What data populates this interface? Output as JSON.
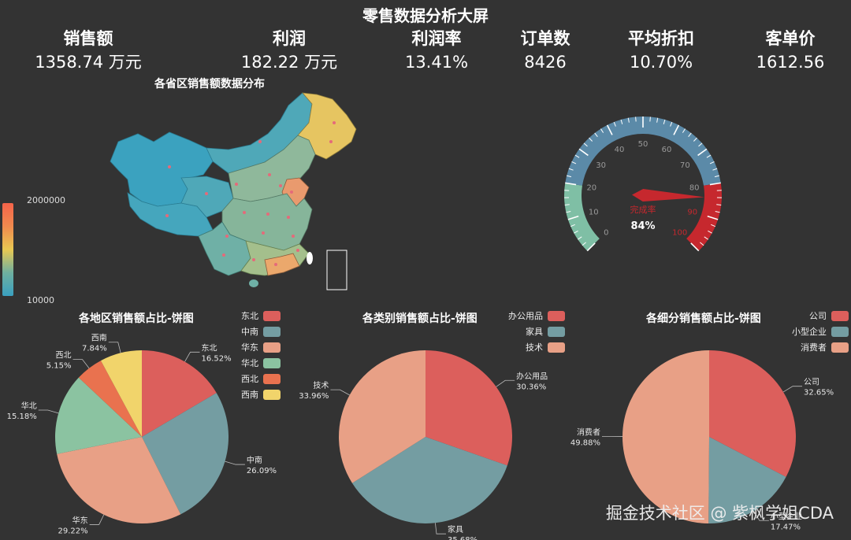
{
  "page": {
    "title": "零售数据分析大屏",
    "watermark": "掘金技术社区 @ 紫枫学姐CDA"
  },
  "kpis": [
    {
      "label": "销售额",
      "value": "1358.74 万元"
    },
    {
      "label": "利润",
      "value": "182.22 万元"
    },
    {
      "label": "利润率",
      "value": "13.41%"
    },
    {
      "label": "订单数",
      "value": "8426"
    },
    {
      "label": "平均折扣",
      "value": "10.70%"
    },
    {
      "label": "客单价",
      "value": "1612.56"
    }
  ],
  "map": {
    "title": "各省区销售额数据分布",
    "visual_map": {
      "max_label": "2000000",
      "min_label": "10000",
      "max": 2000000,
      "min": 10000,
      "colors": [
        "#f5634a",
        "#e8c852",
        "#6fb0a0",
        "#3aa0c0"
      ]
    }
  },
  "gauge": {
    "name": "完成率",
    "value": 84,
    "value_label": "84%",
    "min": 0,
    "max": 100,
    "ticks": [
      "0",
      "10",
      "20",
      "30",
      "40",
      "50",
      "60",
      "70",
      "80",
      "90",
      "100"
    ],
    "bands": [
      {
        "to": 0.2,
        "color": "#7fbfa5"
      },
      {
        "to": 0.8,
        "color": "#5b8aa8"
      },
      {
        "to": 1.0,
        "color": "#c6282e"
      }
    ]
  },
  "chart_data": [
    {
      "type": "pie",
      "title": "各地区销售额占比-饼图",
      "labels": [
        "东北",
        "中南",
        "华东",
        "华北",
        "西北",
        "西南"
      ],
      "values": [
        16.52,
        26.09,
        29.22,
        15.18,
        5.15,
        7.84
      ],
      "value_labels": [
        "16.52%",
        "26.09%",
        "29.22%",
        "15.18%",
        "5.15%",
        "7.84%"
      ],
      "colors": [
        "#dc5f5c",
        "#749da2",
        "#e8a086",
        "#8bc3a1",
        "#e9724f",
        "#f1d46b"
      ]
    },
    {
      "type": "pie",
      "title": "各类别销售额占比-饼图",
      "labels": [
        "办公用品",
        "家具",
        "技术"
      ],
      "values": [
        30.36,
        35.68,
        33.96
      ],
      "value_labels": [
        "30.36%",
        "35.68%",
        "33.96%"
      ],
      "colors": [
        "#dc5f5c",
        "#749da2",
        "#e8a086"
      ]
    },
    {
      "type": "pie",
      "title": "各细分销售额占比-饼图",
      "labels": [
        "公司",
        "小型企业",
        "消费者"
      ],
      "values": [
        32.65,
        17.47,
        49.88
      ],
      "value_labels": [
        "32.65%",
        "17.47%",
        "49.88%"
      ],
      "colors": [
        "#dc5f5c",
        "#749da2",
        "#e8a086"
      ]
    }
  ]
}
